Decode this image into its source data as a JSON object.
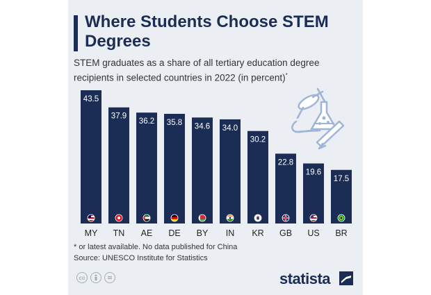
{
  "header": {
    "title": "Where Students Choose STEM Degrees",
    "subtitle": "STEM graduates as a share of all tertiary education degree recipients in selected countries in 2022 (in percent)",
    "subtitle_mark": "*"
  },
  "chart_data": {
    "type": "bar",
    "title": "Where Students Choose STEM Degrees",
    "categories": [
      "MY",
      "TN",
      "AE",
      "DE",
      "BY",
      "IN",
      "KR",
      "GB",
      "US",
      "BR"
    ],
    "values": [
      43.5,
      37.9,
      36.2,
      35.8,
      34.6,
      34.0,
      30.2,
      22.8,
      19.6,
      17.5
    ],
    "value_labels": [
      "43.5",
      "37.9",
      "36.2",
      "35.8",
      "34.6",
      "34.0",
      "30.2",
      "22.8",
      "19.6",
      "17.5"
    ],
    "ylim": [
      0,
      43.5
    ],
    "grid": false,
    "bar_color": "#1b2c55"
  },
  "footer": {
    "footnote": "* or latest available. No data published for China",
    "source": "Source: UNESCO Institute for Statistics",
    "brand": "statista",
    "license_icons": [
      "cc-icon",
      "attribution-icon",
      "no-derivatives-icon"
    ]
  },
  "colors": {
    "brand": "#1b2c55",
    "background": "#ebeff3"
  }
}
